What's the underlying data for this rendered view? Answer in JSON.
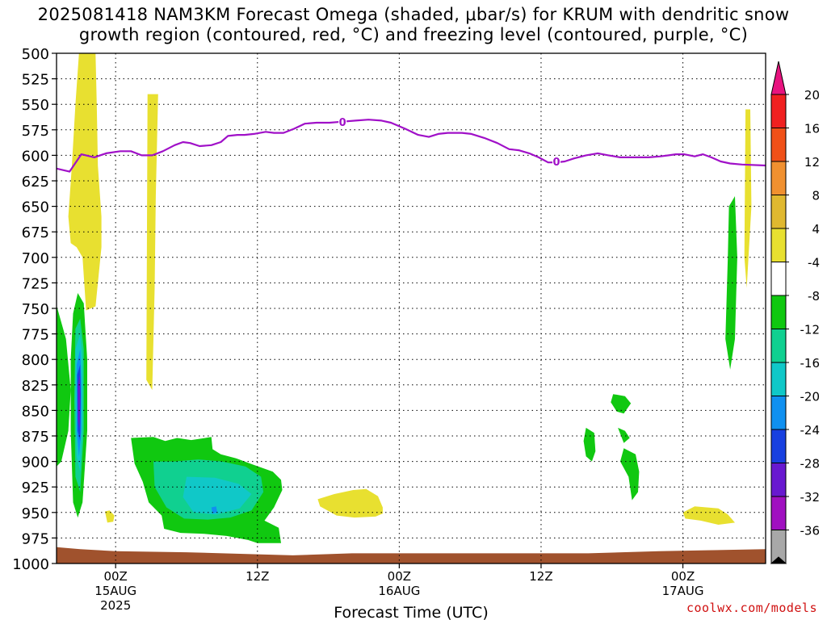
{
  "title_line1": "2025081418 NAM3KM Forecast Omega (shaded, μbar/s) for KRUM with dendritic snow",
  "title_line2": "growth region (contoured, red, °C) and freezing level (contoured, purple, °C)",
  "credit": "coolwx.com/models",
  "chart_data": {
    "type": "area",
    "title": "2025081418 NAM3KM Forecast Omega (shaded, μbar/s) for KRUM with dendritic snow growth region (contoured, red, °C) and freezing level (contoured, purple, °C)",
    "xlabel": "Forecast Time (UTC)",
    "ylabel": "",
    "x_range_hours": [
      -5,
      55
    ],
    "ylim": [
      1000,
      500
    ],
    "y_ticks": [
      500,
      525,
      550,
      575,
      600,
      625,
      650,
      675,
      700,
      725,
      750,
      775,
      800,
      825,
      850,
      875,
      900,
      925,
      950,
      975,
      1000
    ],
    "x_ticks": [
      {
        "hour": 0,
        "label": "00Z",
        "sub1": "15AUG",
        "sub2": "2025"
      },
      {
        "hour": 12,
        "label": "12Z",
        "sub1": "",
        "sub2": ""
      },
      {
        "hour": 24,
        "label": "00Z",
        "sub1": "16AUG",
        "sub2": ""
      },
      {
        "hour": 36,
        "label": "12Z",
        "sub1": "",
        "sub2": ""
      },
      {
        "hour": 48,
        "label": "00Z",
        "sub1": "17AUG",
        "sub2": ""
      }
    ],
    "grid": true,
    "colorbar": {
      "labels": [
        "20",
        "16",
        "12",
        "8",
        "4",
        "-4",
        "-8",
        "-12",
        "-16",
        "-20",
        "-24",
        "-28",
        "-32",
        "-36"
      ],
      "colors": {
        "above_20": "#e8137f",
        "16_20": "#f02020",
        "12_16": "#f05018",
        "8_12": "#f09030",
        "4_8": "#e0b830",
        "0_4": "#e8e030",
        "-4_4": "#ffffff",
        "-8_-4": "#10c810",
        "-12_-8": "#10d090",
        "-16_-12": "#10c8c8",
        "-20_-16": "#1090f0",
        "-24_-20": "#1840e0",
        "-28_-24": "#6818d0",
        "-32_-28": "#a010c0",
        "-36_-32": "#a8a8a8",
        "below_-36": "#000000"
      }
    },
    "freezing_level": {
      "color": "#a010c8",
      "label": "0",
      "points": [
        [
          -5,
          613
        ],
        [
          -3.9,
          616
        ],
        [
          -2.9,
          599
        ],
        [
          -1.8,
          602
        ],
        [
          -0.8,
          598
        ],
        [
          0.4,
          596
        ],
        [
          1.3,
          596
        ],
        [
          2.2,
          600
        ],
        [
          3.1,
          600
        ],
        [
          4,
          596
        ],
        [
          5,
          590
        ],
        [
          5.7,
          587
        ],
        [
          6.3,
          588
        ],
        [
          7.1,
          591
        ],
        [
          8.1,
          590
        ],
        [
          8.9,
          587
        ],
        [
          9.5,
          581
        ],
        [
          10.3,
          580
        ],
        [
          10.9,
          580
        ],
        [
          11.7,
          579
        ],
        [
          12.7,
          577
        ],
        [
          13.4,
          578
        ],
        [
          14.2,
          578
        ],
        [
          15.1,
          574
        ],
        [
          16,
          569
        ],
        [
          17,
          568
        ],
        [
          18.1,
          568
        ],
        [
          19.2,
          567
        ],
        [
          20.3,
          566
        ],
        [
          21.4,
          565
        ],
        [
          22.5,
          566
        ],
        [
          23.3,
          568
        ],
        [
          24.5,
          574
        ],
        [
          25.6,
          580
        ],
        [
          26.5,
          582
        ],
        [
          27.3,
          579
        ],
        [
          28.1,
          578
        ],
        [
          29.3,
          578
        ],
        [
          30.1,
          579
        ],
        [
          31.2,
          583
        ],
        [
          32.3,
          588
        ],
        [
          33.3,
          594
        ],
        [
          34.1,
          595
        ],
        [
          35,
          598
        ],
        [
          35.8,
          602
        ],
        [
          36.6,
          607
        ],
        [
          37.3,
          607
        ],
        [
          38,
          606
        ],
        [
          38.8,
          603
        ],
        [
          39.8,
          600
        ],
        [
          40.8,
          598
        ],
        [
          41.7,
          600
        ],
        [
          42.7,
          602
        ],
        [
          43.8,
          602
        ],
        [
          45.1,
          602
        ],
        [
          46.1,
          601
        ],
        [
          46.8,
          600
        ],
        [
          47.4,
          599
        ],
        [
          48.1,
          599
        ],
        [
          49,
          601
        ],
        [
          49.7,
          599
        ],
        [
          50.4,
          602
        ],
        [
          51.2,
          606
        ],
        [
          52,
          608
        ],
        [
          53,
          609
        ],
        [
          55,
          610
        ]
      ]
    },
    "surface_pressure": {
      "color": "#a0522d",
      "points": [
        [
          -5,
          984
        ],
        [
          -3,
          986
        ],
        [
          0,
          988
        ],
        [
          6,
          989
        ],
        [
          12,
          991
        ],
        [
          15,
          992
        ],
        [
          20,
          990
        ],
        [
          30,
          990
        ],
        [
          40,
          990
        ],
        [
          46,
          988
        ],
        [
          50,
          987
        ],
        [
          55,
          986
        ]
      ]
    },
    "omega_regions": [
      {
        "level": "0_4",
        "points": [
          [
            -3.8,
            686
          ],
          [
            -4,
            660
          ],
          [
            -3.7,
            610
          ],
          [
            -3.4,
            550
          ],
          [
            -3.1,
            500
          ],
          [
            -1.7,
            500
          ],
          [
            -1.6,
            550
          ],
          [
            -1.5,
            610
          ],
          [
            -1.2,
            660
          ],
          [
            -1.2,
            690
          ],
          [
            -1.7,
            748
          ],
          [
            -2.5,
            752
          ],
          [
            -2.8,
            700
          ],
          [
            -3.3,
            690
          ]
        ]
      },
      {
        "level": "0_4",
        "points": [
          [
            -2.7,
            500
          ],
          [
            -2.4,
            500
          ],
          [
            -2.5,
            504
          ]
        ]
      },
      {
        "level": "0_4",
        "points": [
          [
            17.1,
            937
          ],
          [
            18.5,
            932
          ],
          [
            20.1,
            928
          ],
          [
            21.2,
            927
          ],
          [
            22.2,
            934
          ],
          [
            22.6,
            945
          ],
          [
            22.6,
            951
          ],
          [
            22,
            954
          ],
          [
            20.2,
            955
          ],
          [
            18.7,
            953
          ],
          [
            17.3,
            944
          ]
        ]
      },
      {
        "level": "0_4",
        "points": [
          [
            -0.9,
            949
          ],
          [
            -0.5,
            948
          ],
          [
            -0.1,
            953
          ],
          [
            -0.2,
            959
          ],
          [
            -0.7,
            960
          ]
        ]
      },
      {
        "level": "0_4",
        "points": [
          [
            2.7,
            540
          ],
          [
            3.6,
            540
          ],
          [
            3.4,
            640
          ],
          [
            3.3,
            730
          ],
          [
            3.1,
            830
          ],
          [
            2.6,
            820
          ]
        ]
      },
      {
        "level": "0_4",
        "points": [
          [
            48,
            950
          ],
          [
            49,
            944
          ],
          [
            51,
            946
          ],
          [
            51.8,
            952
          ],
          [
            52.4,
            960
          ],
          [
            51,
            962
          ],
          [
            49.5,
            958
          ],
          [
            48.2,
            956
          ]
        ]
      },
      {
        "level": "0_4",
        "points": [
          [
            53.3,
            555
          ],
          [
            53.7,
            555
          ],
          [
            53.8,
            650
          ],
          [
            53.4,
            730
          ],
          [
            53.2,
            700
          ]
        ]
      },
      {
        "level": "-8_-4",
        "points": [
          [
            -5,
            747
          ],
          [
            -4.2,
            780
          ],
          [
            -3.8,
            830
          ],
          [
            -4,
            870
          ],
          [
            -4.6,
            900
          ],
          [
            -5,
            905
          ]
        ]
      },
      {
        "level": "-8_-4",
        "points": [
          [
            -3.6,
            755
          ],
          [
            -3.2,
            735
          ],
          [
            -2.7,
            745
          ],
          [
            -2.4,
            800
          ],
          [
            -2.4,
            870
          ],
          [
            -2.8,
            940
          ],
          [
            -3.2,
            955
          ],
          [
            -3.6,
            940
          ],
          [
            -3.8,
            870
          ],
          [
            -3.8,
            800
          ]
        ]
      },
      {
        "level": "-8_-4",
        "points": [
          [
            1.3,
            877
          ],
          [
            3.2,
            876
          ],
          [
            4.2,
            880
          ],
          [
            5.2,
            877
          ],
          [
            6.4,
            879
          ],
          [
            8.1,
            876
          ],
          [
            8.2,
            888
          ],
          [
            8.9,
            893
          ],
          [
            10.2,
            897
          ],
          [
            11.6,
            903
          ],
          [
            13.3,
            910
          ],
          [
            14,
            918
          ],
          [
            14.1,
            928
          ],
          [
            13.4,
            945
          ],
          [
            12.6,
            958
          ],
          [
            13.8,
            965
          ],
          [
            14,
            980
          ],
          [
            12,
            980
          ],
          [
            11.2,
            977
          ],
          [
            9.4,
            973
          ],
          [
            7.5,
            971
          ],
          [
            5.5,
            970
          ],
          [
            4.1,
            966
          ],
          [
            3.9,
            953
          ],
          [
            2.8,
            940
          ],
          [
            2.3,
            920
          ],
          [
            1.6,
            902
          ]
        ]
      },
      {
        "level": "-8_-4",
        "points": [
          [
            42.1,
            834
          ],
          [
            43.1,
            836
          ],
          [
            43.6,
            843
          ],
          [
            43,
            853
          ],
          [
            42.4,
            851
          ],
          [
            41.9,
            842
          ]
        ]
      },
      {
        "level": "-8_-4",
        "points": [
          [
            42.5,
            867
          ],
          [
            43.1,
            870
          ],
          [
            43.5,
            877
          ],
          [
            43,
            882
          ]
        ]
      },
      {
        "level": "-8_-4",
        "points": [
          [
            43,
            887
          ],
          [
            44,
            893
          ],
          [
            44.3,
            910
          ],
          [
            44.2,
            930
          ],
          [
            43.7,
            938
          ],
          [
            43.4,
            915
          ],
          [
            42.7,
            900
          ]
        ]
      },
      {
        "level": "-8_-4",
        "points": [
          [
            39.8,
            867
          ],
          [
            40.5,
            872
          ],
          [
            40.6,
            890
          ],
          [
            40.3,
            900
          ],
          [
            39.8,
            895
          ],
          [
            39.6,
            880
          ]
        ]
      },
      {
        "level": "-8_-4",
        "points": [
          [
            51.9,
            650
          ],
          [
            52.4,
            640
          ],
          [
            52.6,
            700
          ],
          [
            52.4,
            780
          ],
          [
            52,
            810
          ],
          [
            51.6,
            780
          ],
          [
            51.8,
            700
          ]
        ]
      },
      {
        "level": "-12_-8",
        "points": [
          [
            -3.4,
            770
          ],
          [
            -3,
            760
          ],
          [
            -2.7,
            790
          ],
          [
            -2.7,
            870
          ],
          [
            -3,
            930
          ],
          [
            -3.4,
            915
          ],
          [
            -3.5,
            840
          ]
        ]
      },
      {
        "level": "-12_-8",
        "points": [
          [
            3.2,
            900
          ],
          [
            5,
            900
          ],
          [
            7,
            898
          ],
          [
            9,
            900
          ],
          [
            11,
            905
          ],
          [
            12.3,
            915
          ],
          [
            12.5,
            930
          ],
          [
            11.5,
            948
          ],
          [
            9.7,
            955
          ],
          [
            7.8,
            957
          ],
          [
            5.8,
            956
          ],
          [
            4.3,
            945
          ],
          [
            3.3,
            925
          ]
        ]
      },
      {
        "level": "-16_-12",
        "points": [
          [
            -3.4,
            790
          ],
          [
            -3,
            775
          ],
          [
            -2.8,
            800
          ],
          [
            -2.8,
            860
          ],
          [
            -3,
            910
          ],
          [
            -3.3,
            895
          ],
          [
            -3.4,
            840
          ]
        ]
      },
      {
        "level": "-16_-12",
        "points": [
          [
            6,
            915
          ],
          [
            8.4,
            916
          ],
          [
            10.4,
            922
          ],
          [
            11.5,
            932
          ],
          [
            10.5,
            946
          ],
          [
            8.5,
            952
          ],
          [
            6.6,
            950
          ],
          [
            5.7,
            935
          ]
        ]
      },
      {
        "level": "-20_-16",
        "points": [
          [
            -3.3,
            805
          ],
          [
            -3,
            790
          ],
          [
            -2.9,
            820
          ],
          [
            -2.9,
            870
          ],
          [
            -3.1,
            895
          ],
          [
            -3.3,
            870
          ]
        ]
      },
      {
        "level": "-20_-16",
        "points": [
          [
            8.1,
            945
          ],
          [
            8.5,
            944
          ],
          [
            8.6,
            950
          ],
          [
            8.2,
            951
          ]
        ]
      },
      {
        "level": "-24_-20",
        "points": [
          [
            -3.25,
            815
          ],
          [
            -3,
            805
          ],
          [
            -2.95,
            835
          ],
          [
            -3,
            880
          ],
          [
            -3.2,
            870
          ]
        ]
      },
      {
        "level": "-28_-24",
        "points": [
          [
            -3.2,
            825
          ],
          [
            -3.02,
            815
          ],
          [
            -3,
            840
          ],
          [
            -3.05,
            868
          ],
          [
            -3.18,
            860
          ]
        ]
      }
    ]
  }
}
